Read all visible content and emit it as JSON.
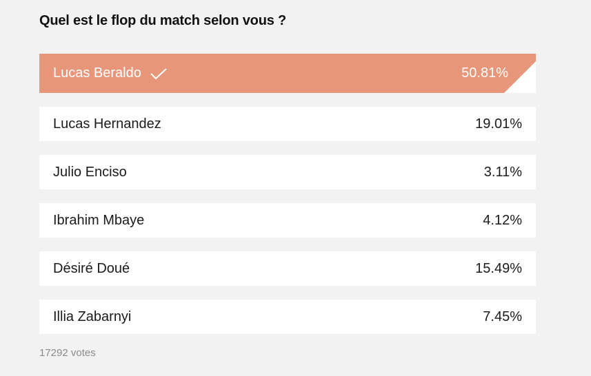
{
  "poll": {
    "question": "Quel est le flop du match selon vous ?",
    "options": [
      {
        "label": "Lucas Beraldo",
        "percent": "50.81%",
        "selected": true
      },
      {
        "label": "Lucas Hernandez",
        "percent": "19.01%",
        "selected": false
      },
      {
        "label": "Julio Enciso",
        "percent": "3.11%",
        "selected": false
      },
      {
        "label": "Ibrahim Mbaye",
        "percent": "4.12%",
        "selected": false
      },
      {
        "label": "Désiré Doué",
        "percent": "15.49%",
        "selected": false
      },
      {
        "label": "Illia Zabarnyi",
        "percent": "7.45%",
        "selected": false
      }
    ],
    "votes": "17292 votes",
    "colors": {
      "selected_bg": "#e8967a",
      "option_bg": "#ffffff",
      "page_bg": "#f2f2f2"
    },
    "selected_icon": "checkmark-icon"
  }
}
